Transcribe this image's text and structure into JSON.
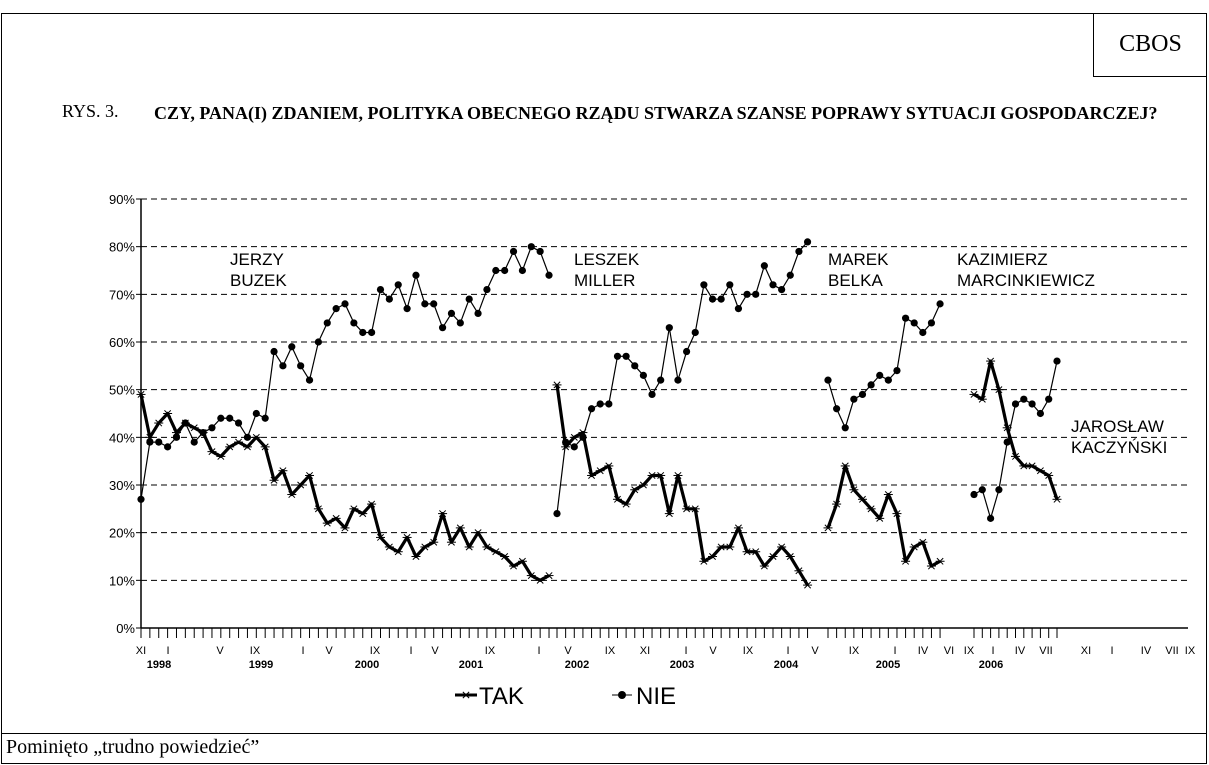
{
  "source": "CBOS",
  "figure_label": "RYS. 3.",
  "figure_title": "CZY, PANA(I) ZDANIEM, POLITYKA OBECNEGO RZĄDU STWARZA SZANSE POPRAWY SYTUACJI GOSPODARCZEJ?",
  "footnote": "Pominięto „trudno powiedzieć”",
  "chart_data": {
    "type": "line",
    "title": "",
    "xlabel": "",
    "ylabel": "",
    "ylim": [
      0,
      90
    ],
    "y_ticks": [
      "0%",
      "10%",
      "20%",
      "30%",
      "40%",
      "50%",
      "60%",
      "70%",
      "80%",
      "90%"
    ],
    "grid": "dashed horizontal",
    "legend": "bottom-center",
    "x_month_labels": [
      "XI",
      "I",
      "V",
      "IX",
      "I",
      "V",
      "IX",
      "I",
      "V",
      "IX",
      "I",
      "V",
      "IX",
      "XI",
      "I",
      "V",
      "IX",
      "I",
      "V",
      "IX",
      "I",
      "IV",
      "VI",
      "IX",
      "I",
      "IV",
      "VII",
      "XI",
      "I",
      "IV",
      "VII",
      "IX"
    ],
    "x_year_labels": [
      "1998",
      "1999",
      "2000",
      "2001",
      "2002",
      "2003",
      "2004",
      "2005",
      "2006"
    ],
    "annotations": [
      {
        "lines": [
          "JERZY",
          "BUZEK"
        ]
      },
      {
        "lines": [
          "LESZEK",
          "MILLER"
        ]
      },
      {
        "lines": [
          "MAREK",
          "BELKA"
        ]
      },
      {
        "lines": [
          "KAZIMIERZ",
          "MARCINKIEWICZ"
        ]
      },
      {
        "lines": [
          "JAROSŁAW",
          "KACZYŃSKI"
        ]
      }
    ],
    "series": [
      {
        "name": "TAK",
        "color": "#000000",
        "marker": "star",
        "segments": [
          [
            49,
            40,
            43,
            45,
            41,
            43,
            42,
            41,
            37,
            36,
            38,
            39,
            38,
            40,
            38,
            31,
            33,
            28,
            30,
            32,
            25,
            22,
            23,
            21,
            25,
            24,
            26,
            19,
            17,
            16,
            19,
            15,
            17,
            18,
            24,
            18,
            21,
            17,
            20,
            17,
            16,
            15,
            13,
            14,
            11,
            10,
            11
          ],
          [
            51,
            38,
            40,
            41,
            32,
            33,
            34,
            27,
            26,
            29,
            30,
            32,
            32,
            24,
            32,
            25,
            25,
            14,
            15,
            17,
            17,
            21,
            16,
            16,
            13,
            15,
            17,
            15,
            12,
            9
          ],
          [
            21,
            26,
            34,
            29,
            27,
            25,
            23,
            28,
            24,
            14,
            17,
            18,
            13,
            14
          ],
          [
            49,
            48,
            56,
            50,
            42,
            36,
            34,
            34,
            33,
            32,
            27
          ]
        ]
      },
      {
        "name": "NIE",
        "color": "#000000",
        "marker": "circle",
        "segments": [
          [
            27,
            39,
            39,
            38,
            40,
            43,
            39,
            41,
            42,
            44,
            44,
            43,
            40,
            45,
            44,
            58,
            55,
            59,
            55,
            52,
            60,
            64,
            67,
            68,
            64,
            62,
            62,
            71,
            69,
            72,
            67,
            74,
            68,
            68,
            63,
            66,
            64,
            69,
            66,
            71,
            75,
            75,
            79,
            75,
            80,
            79,
            74
          ],
          [
            24,
            39,
            38,
            40,
            46,
            47,
            47,
            57,
            57,
            55,
            53,
            49,
            52,
            63,
            52,
            58,
            62,
            72,
            69,
            69,
            72,
            67,
            70,
            70,
            76,
            72,
            71,
            74,
            79,
            81
          ],
          [
            52,
            46,
            42,
            48,
            49,
            51,
            53,
            52,
            54,
            65,
            64,
            62,
            64,
            68
          ],
          [
            28,
            29,
            23,
            29,
            39,
            47,
            48,
            47,
            45,
            48,
            56
          ]
        ]
      }
    ]
  }
}
